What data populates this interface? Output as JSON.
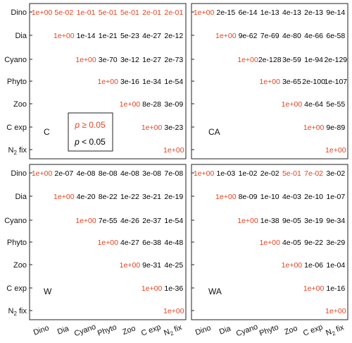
{
  "colors": {
    "significant": "#000000",
    "not_significant": "#e8411c",
    "frame": "#222222",
    "background": "#ffffff"
  },
  "chart_data": {
    "type": "table",
    "description_of_encoding": "",
    "row_labels": [
      "Dino",
      "Dia",
      "Cyano",
      "Phyto",
      "Zoo",
      "C exp",
      "N2 fix"
    ],
    "col_labels": [
      "Dino",
      "Dia",
      "Cyano",
      "Phyto",
      "Zoo",
      "C exp",
      "N2 fix"
    ],
    "x_tick_labels": [
      "Dino",
      "Dia",
      "Cyano",
      "Phyto",
      "Zoo",
      "C exp",
      "N2 fix"
    ],
    "legend": {
      "not_sig_label": "p ≥ 0.05",
      "sig_label": "p < 0.05"
    },
    "panels": [
      {
        "label": "C",
        "cells": [
          [
            {
              "v": "1e+00",
              "sig": false
            },
            {
              "v": "5e-02",
              "sig": false
            },
            {
              "v": "1e-01",
              "sig": false
            },
            {
              "v": "5e-01",
              "sig": false
            },
            {
              "v": "5e-01",
              "sig": false
            },
            {
              "v": "2e-01",
              "sig": false
            },
            {
              "v": "2e-01",
              "sig": false
            }
          ],
          [
            null,
            {
              "v": "1e+00",
              "sig": false
            },
            {
              "v": "1e-14",
              "sig": true
            },
            {
              "v": "1e-21",
              "sig": true
            },
            {
              "v": "5e-23",
              "sig": true
            },
            {
              "v": "4e-27",
              "sig": true
            },
            {
              "v": "2e-12",
              "sig": true
            }
          ],
          [
            null,
            null,
            {
              "v": "1e+00",
              "sig": false
            },
            {
              "v": "3e-70",
              "sig": true
            },
            {
              "v": "3e-12",
              "sig": true
            },
            {
              "v": "1e-27",
              "sig": true
            },
            {
              "v": "2e-73",
              "sig": true
            }
          ],
          [
            null,
            null,
            null,
            {
              "v": "1e+00",
              "sig": false
            },
            {
              "v": "3e-16",
              "sig": true
            },
            {
              "v": "1e-34",
              "sig": true
            },
            {
              "v": "1e-54",
              "sig": true
            }
          ],
          [
            null,
            null,
            null,
            null,
            {
              "v": "1e+00",
              "sig": false
            },
            {
              "v": "8e-28",
              "sig": true
            },
            {
              "v": "3e-09",
              "sig": true
            }
          ],
          [
            null,
            null,
            null,
            null,
            null,
            {
              "v": "1e+00",
              "sig": false
            },
            {
              "v": "3e-23",
              "sig": true
            }
          ],
          [
            null,
            null,
            null,
            null,
            null,
            null,
            {
              "v": "1e+00",
              "sig": false
            }
          ]
        ]
      },
      {
        "label": "CA",
        "cells": [
          [
            {
              "v": "1e+00",
              "sig": false
            },
            {
              "v": "2e-15",
              "sig": true
            },
            {
              "v": "6e-14",
              "sig": true
            },
            {
              "v": "1e-13",
              "sig": true
            },
            {
              "v": "4e-13",
              "sig": true
            },
            {
              "v": "2e-13",
              "sig": true
            },
            {
              "v": "9e-14",
              "sig": true
            }
          ],
          [
            null,
            {
              "v": "1e+00",
              "sig": false
            },
            {
              "v": "9e-62",
              "sig": true
            },
            {
              "v": "7e-69",
              "sig": true
            },
            {
              "v": "4e-80",
              "sig": true
            },
            {
              "v": "4e-66",
              "sig": true
            },
            {
              "v": "6e-58",
              "sig": true
            }
          ],
          [
            null,
            null,
            {
              "v": "1e+00",
              "sig": false
            },
            {
              "v": "2e-128",
              "sig": true
            },
            {
              "v": "3e-59",
              "sig": true
            },
            {
              "v": "1e-94",
              "sig": true
            },
            {
              "v": "2e-129",
              "sig": true
            }
          ],
          [
            null,
            null,
            null,
            {
              "v": "1e+00",
              "sig": false
            },
            {
              "v": "3e-65",
              "sig": true
            },
            {
              "v": "2e-100",
              "sig": true
            },
            {
              "v": "1e-107",
              "sig": true
            }
          ],
          [
            null,
            null,
            null,
            null,
            {
              "v": "1e+00",
              "sig": false
            },
            {
              "v": "4e-64",
              "sig": true
            },
            {
              "v": "5e-55",
              "sig": true
            }
          ],
          [
            null,
            null,
            null,
            null,
            null,
            {
              "v": "1e+00",
              "sig": false
            },
            {
              "v": "9e-89",
              "sig": true
            }
          ],
          [
            null,
            null,
            null,
            null,
            null,
            null,
            {
              "v": "1e+00",
              "sig": false
            }
          ]
        ]
      },
      {
        "label": "W",
        "cells": [
          [
            {
              "v": "1e+00",
              "sig": false
            },
            {
              "v": "2e-07",
              "sig": true
            },
            {
              "v": "4e-08",
              "sig": true
            },
            {
              "v": "8e-08",
              "sig": true
            },
            {
              "v": "4e-08",
              "sig": true
            },
            {
              "v": "3e-08",
              "sig": true
            },
            {
              "v": "7e-08",
              "sig": true
            }
          ],
          [
            null,
            {
              "v": "1e+00",
              "sig": false
            },
            {
              "v": "4e-20",
              "sig": true
            },
            {
              "v": "8e-22",
              "sig": true
            },
            {
              "v": "1e-22",
              "sig": true
            },
            {
              "v": "3e-21",
              "sig": true
            },
            {
              "v": "2e-19",
              "sig": true
            }
          ],
          [
            null,
            null,
            {
              "v": "1e+00",
              "sig": false
            },
            {
              "v": "7e-55",
              "sig": true
            },
            {
              "v": "4e-26",
              "sig": true
            },
            {
              "v": "2e-37",
              "sig": true
            },
            {
              "v": "1e-54",
              "sig": true
            }
          ],
          [
            null,
            null,
            null,
            {
              "v": "1e+00",
              "sig": false
            },
            {
              "v": "4e-27",
              "sig": true
            },
            {
              "v": "6e-38",
              "sig": true
            },
            {
              "v": "4e-48",
              "sig": true
            }
          ],
          [
            null,
            null,
            null,
            null,
            {
              "v": "1e+00",
              "sig": false
            },
            {
              "v": "9e-31",
              "sig": true
            },
            {
              "v": "4e-25",
              "sig": true
            }
          ],
          [
            null,
            null,
            null,
            null,
            null,
            {
              "v": "1e+00",
              "sig": false
            },
            {
              "v": "1e-36",
              "sig": true
            }
          ],
          [
            null,
            null,
            null,
            null,
            null,
            null,
            {
              "v": "1e+00",
              "sig": false
            }
          ]
        ]
      },
      {
        "label": "WA",
        "cells": [
          [
            {
              "v": "1e+00",
              "sig": false
            },
            {
              "v": "1e-03",
              "sig": true
            },
            {
              "v": "1e-02",
              "sig": true
            },
            {
              "v": "2e-02",
              "sig": true
            },
            {
              "v": "5e-01",
              "sig": false
            },
            {
              "v": "7e-02",
              "sig": false
            },
            {
              "v": "3e-02",
              "sig": true
            }
          ],
          [
            null,
            {
              "v": "1e+00",
              "sig": false
            },
            {
              "v": "8e-09",
              "sig": true
            },
            {
              "v": "1e-10",
              "sig": true
            },
            {
              "v": "4e-03",
              "sig": true
            },
            {
              "v": "2e-10",
              "sig": true
            },
            {
              "v": "1e-07",
              "sig": true
            }
          ],
          [
            null,
            null,
            {
              "v": "1e+00",
              "sig": false
            },
            {
              "v": "1e-38",
              "sig": true
            },
            {
              "v": "9e-05",
              "sig": true
            },
            {
              "v": "3e-19",
              "sig": true
            },
            {
              "v": "9e-34",
              "sig": true
            }
          ],
          [
            null,
            null,
            null,
            {
              "v": "1e+00",
              "sig": false
            },
            {
              "v": "4e-05",
              "sig": true
            },
            {
              "v": "9e-22",
              "sig": true
            },
            {
              "v": "3e-29",
              "sig": true
            }
          ],
          [
            null,
            null,
            null,
            null,
            {
              "v": "1e+00",
              "sig": false
            },
            {
              "v": "1e-06",
              "sig": true
            },
            {
              "v": "1e-04",
              "sig": true
            }
          ],
          [
            null,
            null,
            null,
            null,
            null,
            {
              "v": "1e+00",
              "sig": false
            },
            {
              "v": "1e-16",
              "sig": true
            }
          ],
          [
            null,
            null,
            null,
            null,
            null,
            null,
            {
              "v": "1e+00",
              "sig": false
            }
          ]
        ]
      }
    ]
  }
}
